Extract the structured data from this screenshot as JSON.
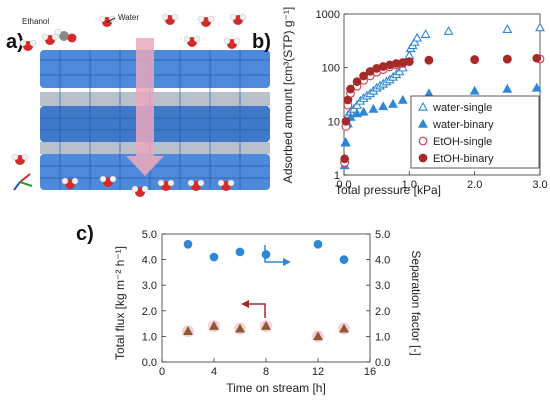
{
  "panels": {
    "a": "a)",
    "b": "b)",
    "c": "c)"
  },
  "panel_a": {
    "ethanol_label": "Ethanol",
    "water_label": "Water",
    "colors": {
      "framework": "#3a7dd8",
      "arrow": "#e9a7bd",
      "oxygen": "#d42a2a",
      "hydrogen": "#f2f2f2",
      "carbon": "#8a8a8a"
    }
  },
  "chart_data": [
    {
      "type": "scatter",
      "panel": "b",
      "xlabel": "Total pressure [kPa]",
      "ylabel": "Adsorbed amount [cm³(STP) g⁻¹]",
      "xlim": [
        0,
        3.0
      ],
      "ylim": [
        1,
        1000
      ],
      "yscale": "log",
      "xticks": [
        "0.0",
        "1.0",
        "2.0",
        "3.0"
      ],
      "yticks": [
        "1",
        "10",
        "100",
        "1000"
      ],
      "grid": false,
      "legend_position": "lower-right",
      "series": [
        {
          "name": "water-single",
          "marker": "triangle-open",
          "color": "#2e86d6",
          "x": [
            0.01,
            0.02,
            0.04,
            0.06,
            0.1,
            0.15,
            0.2,
            0.25,
            0.3,
            0.35,
            0.4,
            0.45,
            0.5,
            0.55,
            0.6,
            0.65,
            0.7,
            0.75,
            0.8,
            0.85,
            0.9,
            0.95,
            1.0,
            1.02,
            1.05,
            1.08,
            1.12,
            1.25,
            1.6,
            2.5,
            3.0
          ],
          "y": [
            2,
            4,
            9,
            13,
            15,
            17,
            20,
            24,
            27,
            30,
            33,
            37,
            42,
            46,
            50,
            55,
            60,
            67,
            75,
            85,
            100,
            130,
            170,
            230,
            260,
            300,
            360,
            420,
            480,
            520,
            560
          ]
        },
        {
          "name": "water-binary",
          "marker": "triangle-filled",
          "color": "#2e86d6",
          "x": [
            0.01,
            0.03,
            0.06,
            0.1,
            0.2,
            0.3,
            0.45,
            0.6,
            0.75,
            0.9,
            1.3,
            2.0,
            2.5,
            2.95
          ],
          "y": [
            1.5,
            4,
            9,
            12,
            14,
            15,
            17,
            19,
            21,
            25,
            33,
            37,
            40,
            42
          ]
        },
        {
          "name": "EtOH-single",
          "marker": "circle-open",
          "color": "#d93a4a",
          "x": [
            0.01,
            0.03,
            0.06,
            0.1,
            0.2,
            0.3,
            0.4,
            0.5,
            0.6,
            0.7,
            0.8,
            0.9,
            1.0,
            1.3,
            2.0,
            2.5,
            3.0
          ],
          "y": [
            1.7,
            8,
            20,
            33,
            45,
            58,
            70,
            82,
            92,
            103,
            112,
            120,
            130,
            137,
            140,
            143,
            145
          ]
        },
        {
          "name": "EtOH-binary",
          "marker": "circle-filled",
          "color": "#a52a2a",
          "x": [
            0.01,
            0.03,
            0.06,
            0.1,
            0.2,
            0.3,
            0.4,
            0.5,
            0.6,
            0.7,
            0.8,
            0.9,
            1.0,
            1.3,
            2.0,
            2.5,
            2.95
          ],
          "y": [
            2,
            10,
            25,
            40,
            55,
            70,
            85,
            97,
            105,
            113,
            120,
            125,
            130,
            138,
            142,
            145,
            150
          ]
        }
      ]
    },
    {
      "type": "scatter",
      "panel": "c",
      "xlabel": "Time on stream [h]",
      "ylabel": "Total flux [kg m⁻² h⁻¹]",
      "ylabel_right": "Separation factor [-]",
      "xlim": [
        0,
        16
      ],
      "ylim": [
        0,
        5.0
      ],
      "ylim_right": [
        0,
        5.0
      ],
      "xticks": [
        "0",
        "4",
        "8",
        "12",
        "16"
      ],
      "yticks": [
        "0.0",
        "1.0",
        "2.0",
        "3.0",
        "4.0",
        "5.0"
      ],
      "yticks_right": [
        "0.0",
        "1.0",
        "2.0",
        "3.0",
        "4.0",
        "5.0"
      ],
      "grid": false,
      "series": [
        {
          "name": "flux",
          "axis": "left",
          "marker": "circle-filled",
          "color": "#2e86d6",
          "x": [
            2,
            4,
            6,
            8,
            12,
            14
          ],
          "y": [
            4.6,
            4.1,
            4.3,
            4.2,
            4.6,
            4.0
          ]
        },
        {
          "name": "separation",
          "axis": "right",
          "marker": "triangle-filled",
          "color": "#8b5a2b",
          "x": [
            2,
            4,
            6,
            8,
            12,
            14
          ],
          "y": [
            1.2,
            1.4,
            1.3,
            1.4,
            1.0,
            1.3
          ]
        }
      ]
    }
  ]
}
